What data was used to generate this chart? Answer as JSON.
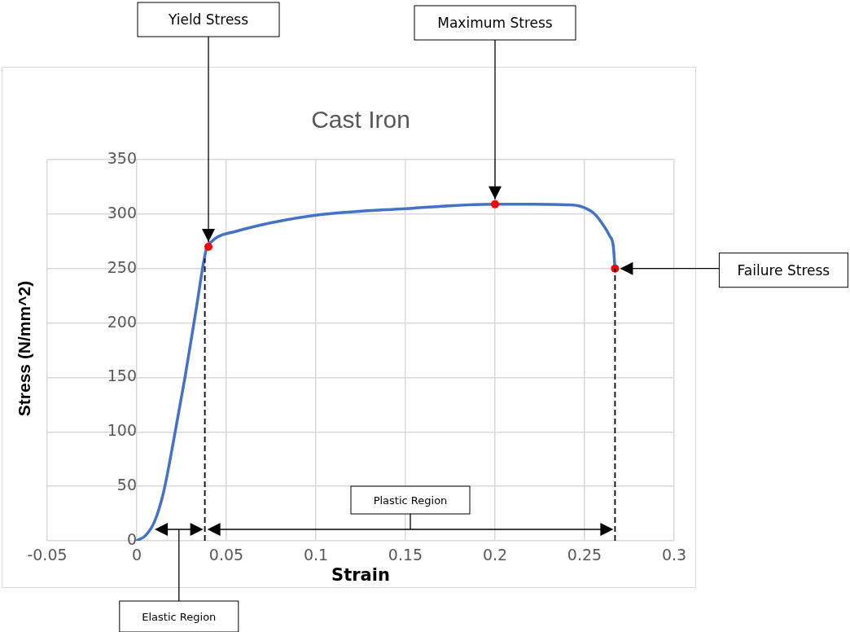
{
  "chart_data": {
    "type": "line",
    "title": "Cast Iron",
    "xlabel": "Strain",
    "ylabel": "Stress (N/mm^2)",
    "xlim": [
      -0.05,
      0.3
    ],
    "xticks": [
      -0.05,
      0,
      0.05,
      0.1,
      0.15,
      0.2,
      0.25,
      0.3
    ],
    "ylim": [
      0,
      350
    ],
    "yticks": [
      0,
      50,
      100,
      150,
      200,
      250,
      300,
      350
    ],
    "grid": true,
    "legend": false,
    "series": [
      {
        "color": "#4472c4",
        "marker": "none",
        "x": [
          0,
          0.005,
          0.01,
          0.015,
          0.021,
          0.027,
          0.033,
          0.039,
          0.042,
          0.045,
          0.055,
          0.075,
          0.1,
          0.15,
          0.2,
          0.22,
          0.24,
          0.248,
          0.255,
          0.26,
          0.264,
          0.266,
          0.267
        ],
        "values": [
          0,
          5,
          18,
          45,
          96,
          151,
          211,
          269,
          275,
          279,
          284,
          292,
          299,
          305,
          309,
          309,
          308.5,
          307,
          301,
          291,
          280,
          271,
          250
        ]
      },
      {
        "type": "scatter",
        "color": "#ff0000",
        "marker": "circle",
        "x": [
          0.04,
          0.2,
          0.267
        ],
        "values": [
          270,
          309,
          250
        ]
      }
    ],
    "annotations": [
      {
        "text": "Yield Stress",
        "x": 0.04,
        "y": 270
      },
      {
        "text": "Maximum Stress",
        "x": 0.2,
        "y": 309
      },
      "Failure Stress",
      "Elastic Region",
      "Plastic Region"
    ],
    "ref_lines": [
      {
        "axis": "x",
        "value": 0.038,
        "color": "#000000",
        "line_style": "dashed"
      },
      {
        "axis": "x",
        "value": 0.267,
        "color": "#000000",
        "line_style": "dashed"
      }
    ]
  }
}
